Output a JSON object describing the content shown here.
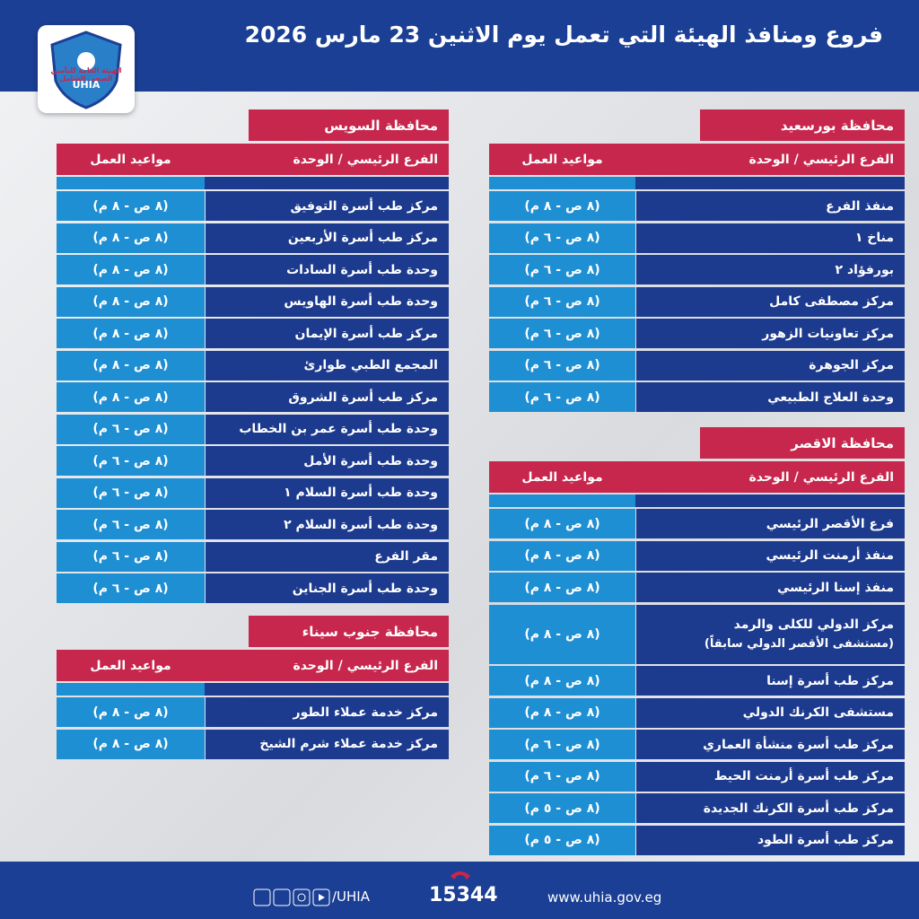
{
  "header": {
    "title": "فروع ومنافذ الهيئة التي تعمل يوم الاثنين 23 مارس 2026"
  },
  "logo": {
    "name": "الهيئة العامة للتأمين الصحي الشامل",
    "abbr": "UHIA"
  },
  "sections": [
    {
      "title": "محافظة بورسعيد",
      "col_unit": "الفرع الرئيسي / الوحدة",
      "col_hours": "مواعيد العمل",
      "rows": [
        {
          "unit": "منفذ الفرع",
          "hours": "(٨ ص - ٨ م)"
        },
        {
          "unit": "مناخ ١",
          "hours": "(٨ ص - ٦ م)"
        },
        {
          "unit": "بورفؤاد ٢",
          "hours": "(٨ ص - ٦ م)"
        },
        {
          "unit": "مركز مصطفى كامل",
          "hours": "(٨ ص - ٦ م)"
        },
        {
          "unit": "مركز تعاونيات الزهور",
          "hours": "(٨ ص - ٦ م)"
        },
        {
          "unit": "مركز الجوهرة",
          "hours": "(٨ ص - ٦ م)"
        },
        {
          "unit": "وحدة العلاج الطبيعي",
          "hours": "(٨ ص - ٦ م)"
        }
      ]
    },
    {
      "title": "محافظة الاقصر",
      "col_unit": "الفرع الرئيسي / الوحدة",
      "col_hours": "مواعيد العمل",
      "rows": [
        {
          "unit": "فرع الأقصر الرئيسي",
          "hours": "(٨ ص - ٨ م)"
        },
        {
          "unit": "منفذ أرمنت الرئيسي",
          "hours": "(٨ ص - ٨ م)"
        },
        {
          "unit": "منفذ إسنا الرئيسي",
          "hours": "(٨ ص - ٨ م)"
        },
        {
          "unit": "مركز الدولي للكلى والرمد",
          "note": "(مستشفى الأقصر الدولي سابقاً)",
          "hours": "(٨ ص - ٨ م)"
        },
        {
          "unit": "مركز طب أسرة إسنا",
          "hours": "(٨ ص - ٨ م)"
        },
        {
          "unit": "مستشفى الكرنك الدولي",
          "hours": "(٨ ص - ٨ م)"
        },
        {
          "unit": "مركز طب أسرة منشأة العماري",
          "hours": "(٨ ص - ٦ م)"
        },
        {
          "unit": "مركز طب أسرة أرمنت الحيط",
          "hours": "(٨ ص - ٦ م)"
        },
        {
          "unit": "مركز طب أسرة الكرنك الجديدة",
          "hours": "(٨ ص - ٥ م)"
        },
        {
          "unit": "مركز طب أسرة الطود",
          "hours": "(٨ ص - ٥ م)"
        }
      ]
    },
    {
      "title": "محافظة السويس",
      "col_unit": "الفرع الرئيسي / الوحدة",
      "col_hours": "مواعيد العمل",
      "rows": [
        {
          "unit": "مركز طب أسرة التوفيق",
          "hours": "(٨ ص - ٨ م)"
        },
        {
          "unit": "مركز طب أسرة الأربعين",
          "hours": "(٨ ص - ٨ م)"
        },
        {
          "unit": "وحدة طب أسرة السادات",
          "hours": "(٨ ص - ٨ م)"
        },
        {
          "unit": "وحدة طب أسرة الهاويس",
          "hours": "(٨ ص - ٨ م)"
        },
        {
          "unit": "مركز طب أسرة الإيمان",
          "hours": "(٨ ص - ٨ م)"
        },
        {
          "unit": "المجمع الطبي طوارئ",
          "hours": "(٨ ص - ٨ م)"
        },
        {
          "unit": "مركز طب أسرة الشروق",
          "hours": "(٨ ص - ٨ م)"
        },
        {
          "unit": "وحدة طب أسرة عمر بن الخطاب",
          "hours": "(٨ ص - ٦ م)"
        },
        {
          "unit": "وحدة طب أسرة الأمل",
          "hours": "(٨ ص - ٦ م)"
        },
        {
          "unit": "وحدة طب أسرة السلام ١",
          "hours": "(٨ ص - ٦ م)"
        },
        {
          "unit": "وحدة طب أسرة السلام ٢",
          "hours": "(٨ ص - ٦ م)"
        },
        {
          "unit": "مقر الفرع",
          "hours": "(٨ ص - ٦ م)"
        },
        {
          "unit": "وحدة طب أسرة الجناين",
          "hours": "(٨ ص - ٦ م)"
        }
      ]
    },
    {
      "title": "محافظة جنوب سيناء",
      "col_unit": "الفرع الرئيسي / الوحدة",
      "col_hours": "مواعيد العمل",
      "rows": [
        {
          "unit": "مركز خدمة عملاء الطور",
          "hours": "(٨ ص - ٨ م)"
        },
        {
          "unit": "مركز خدمة عملاء شرم الشيخ",
          "hours": "(٨ ص - ٨ م)"
        }
      ]
    }
  ],
  "footer": {
    "social": "/UHIA",
    "hotline": "15344",
    "website": "www.uhia.gov.eg"
  }
}
